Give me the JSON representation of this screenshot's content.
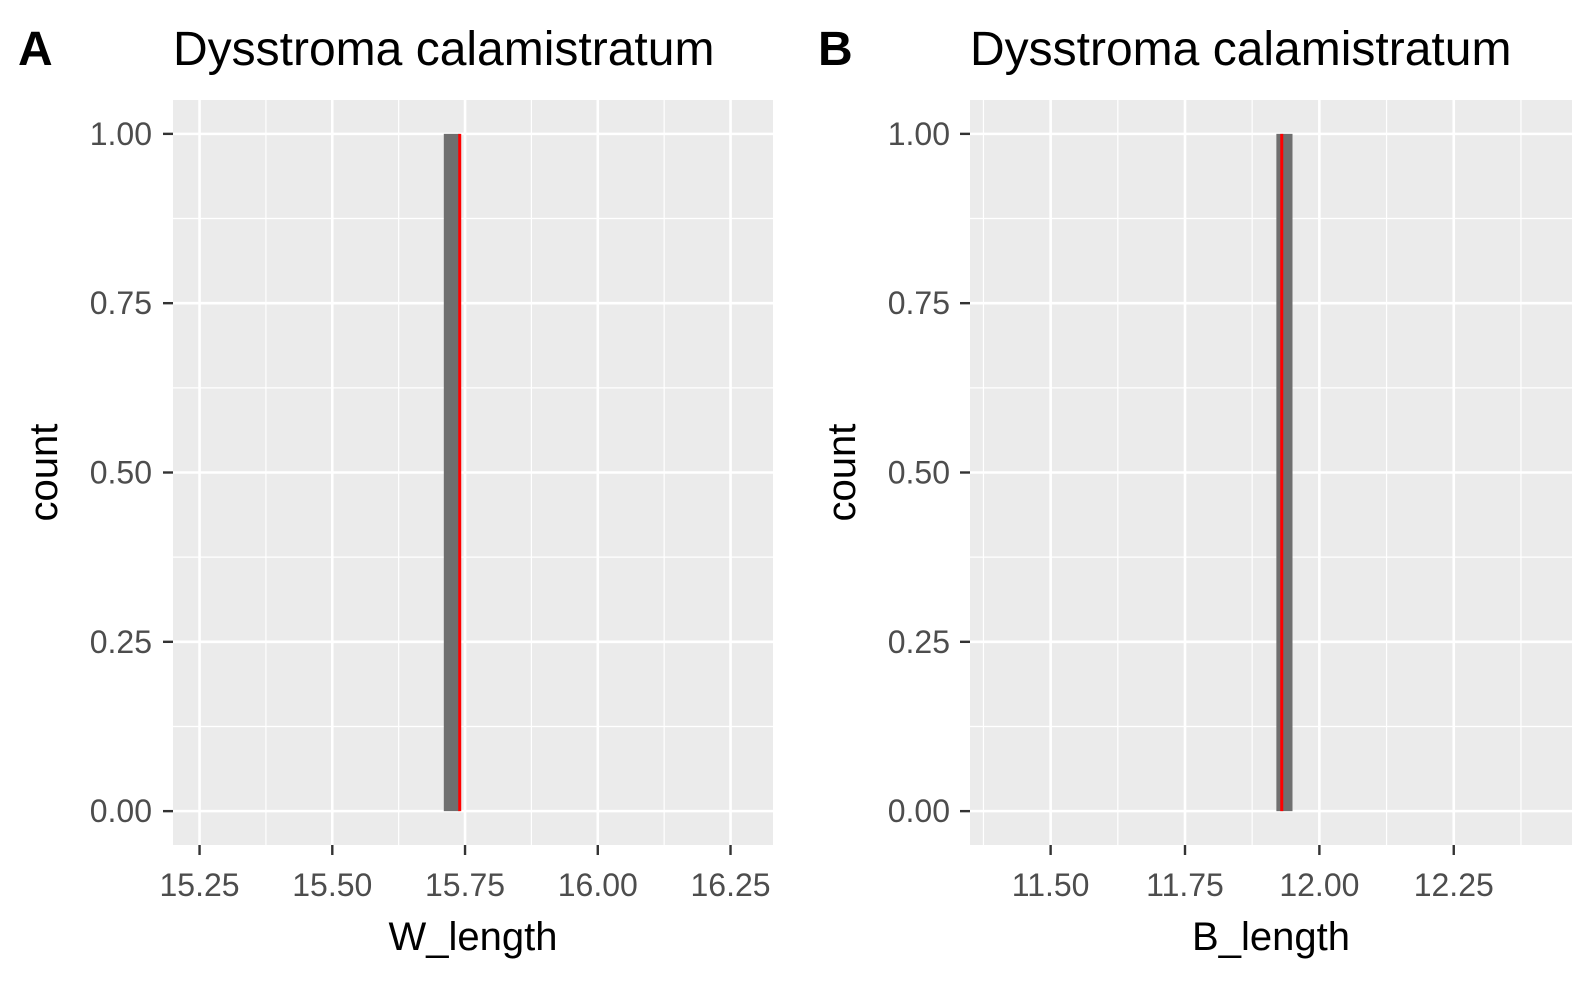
{
  "chart_data": [
    {
      "type": "histogram",
      "panel_tag": "A",
      "title": "Dysstroma calamistratum",
      "xlabel": "W_length",
      "ylabel": "count",
      "xlim": [
        15.2,
        16.33
      ],
      "ylim": [
        -0.05,
        1.05
      ],
      "xticks": [
        "15.25",
        "15.50",
        "15.75",
        "16.00",
        "16.25"
      ],
      "xtick_values": [
        15.25,
        15.5,
        15.75,
        16.0,
        16.25
      ],
      "yticks": [
        "0.00",
        "0.25",
        "0.50",
        "0.75",
        "1.00"
      ],
      "ytick_values": [
        0,
        0.25,
        0.5,
        0.75,
        1.0
      ],
      "bars": [
        {
          "x_start": 15.71,
          "x_end": 15.74,
          "count": 1
        }
      ],
      "reference_line": {
        "x": 15.74,
        "color": "#ff0000"
      },
      "grid": true,
      "panel_background": "#ebebeb",
      "bar_color": "#6f6f6f"
    },
    {
      "type": "histogram",
      "panel_tag": "B",
      "title": "Dysstroma calamistratum",
      "xlabel": "B_length",
      "ylabel": "count",
      "xlim": [
        11.35,
        12.47
      ],
      "ylim": [
        -0.05,
        1.05
      ],
      "xticks": [
        "11.50",
        "11.75",
        "12.00",
        "12.25"
      ],
      "xtick_values": [
        11.5,
        11.75,
        12.0,
        12.25
      ],
      "yticks": [
        "0.00",
        "0.25",
        "0.50",
        "0.75",
        "1.00"
      ],
      "ytick_values": [
        0,
        0.25,
        0.5,
        0.75,
        1.0
      ],
      "bars": [
        {
          "x_start": 11.92,
          "x_end": 11.95,
          "count": 1
        }
      ],
      "reference_line": {
        "x": 11.93,
        "color": "#ff0000"
      },
      "grid": true,
      "panel_background": "#ebebeb",
      "bar_color": "#6f6f6f"
    }
  ]
}
